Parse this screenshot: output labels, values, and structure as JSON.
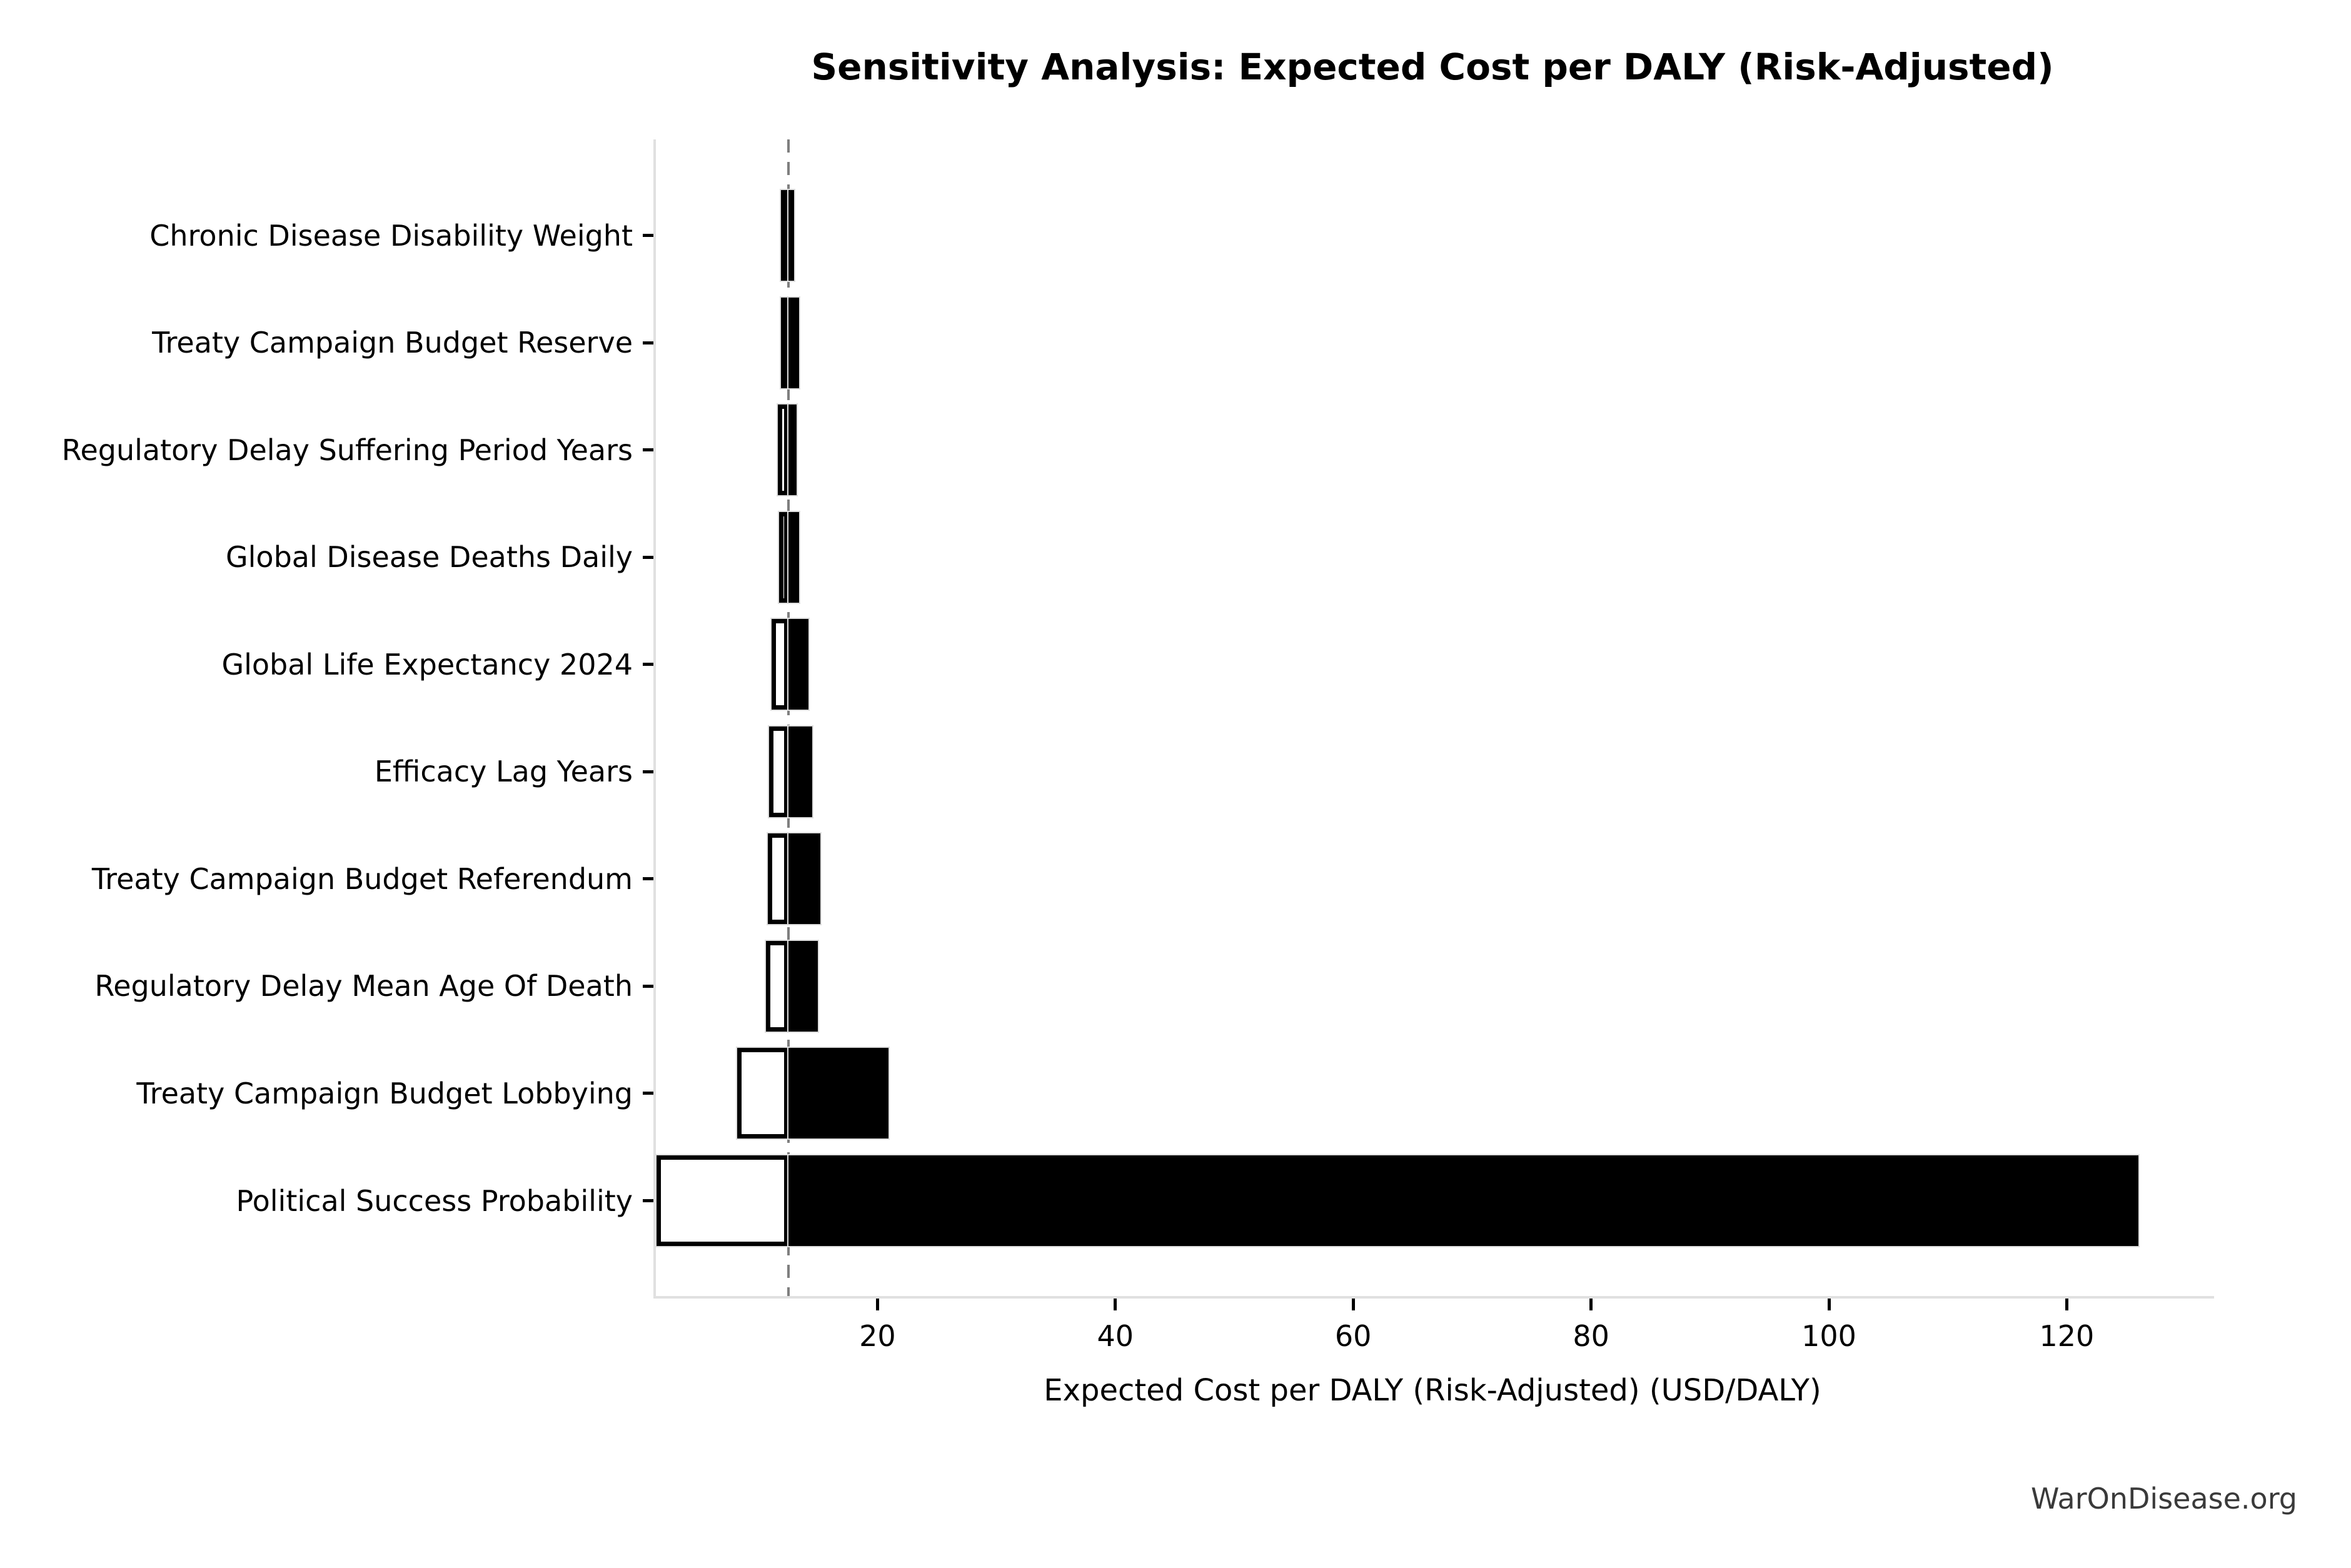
{
  "chart_data": {
    "type": "bar",
    "variant": "tornado-sensitivity",
    "title": "Sensitivity Analysis: Expected Cost per DALY (Risk-Adjusted)",
    "xlabel": "Expected Cost per DALY (Risk-Adjusted) (USD/DALY)",
    "ylabel": "",
    "baseline_value": 12.5,
    "xlim": [
      1.2,
      132.2
    ],
    "x_ticks": [
      20,
      40,
      60,
      80,
      100,
      120
    ],
    "grid": false,
    "legend": "none",
    "categories": [
      "Chronic Disease Disability Weight",
      "Treaty Campaign Budget Reserve",
      "Regulatory Delay Suffering Period Years",
      "Global Disease Deaths Daily",
      "Global Life Expectancy 2024",
      "Efficacy Lag Years",
      "Treaty Campaign Budget Referendum",
      "Regulatory Delay Mean Age Of Death",
      "Treaty Campaign Budget Lobbying",
      "Political Success Probability"
    ],
    "series": [
      {
        "name": "Low case (white bar, left of baseline)",
        "values": [
          11.9,
          11.9,
          11.6,
          11.7,
          11.1,
          10.9,
          10.8,
          10.6,
          8.2,
          1.4
        ]
      },
      {
        "name": "High case (black bar, right of baseline)",
        "values": [
          13.0,
          13.4,
          13.2,
          13.4,
          14.2,
          14.5,
          15.2,
          15.0,
          20.9,
          126.0
        ]
      }
    ],
    "colors": {
      "low_fill": "#ffffff",
      "high_fill": "#000000",
      "bar_edge": "#000000",
      "baseline_line": "#7f7f7f",
      "spine": "#e0e0e0",
      "text": "#000000"
    }
  },
  "watermark": "WarOnDisease.org"
}
